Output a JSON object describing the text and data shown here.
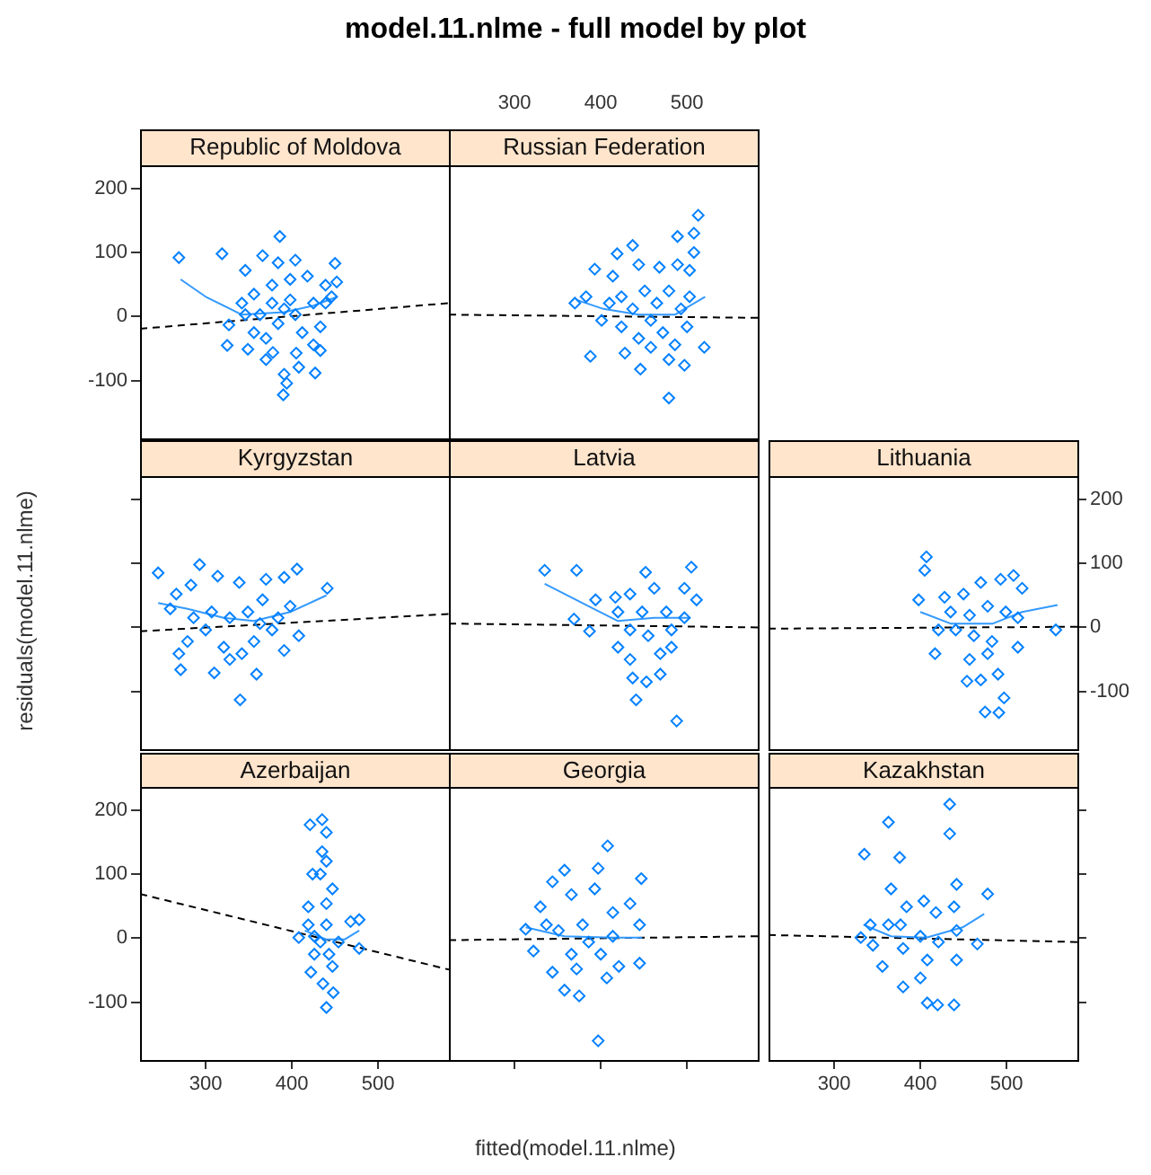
{
  "chart_data": [
    {
      "type": "scatter",
      "title": "Republic of Moldova",
      "annotations": [
        "model.11.nlme - full model by plot"
      ],
      "xlim": [
        224,
        582
      ],
      "ylim": [
        -190,
        236
      ],
      "xticks": [
        300,
        400,
        500
      ],
      "yticks": [
        -100,
        0,
        100,
        200
      ],
      "tick_labels": "y",
      "series": [
        {
          "type": "scatter",
          "color": "#0080ff",
          "marker": "diamond",
          "x": [
            269,
            319,
            386,
            366,
            346,
            384,
            404,
            450,
            452,
            327,
            325,
            349,
            378,
            391,
            390,
            394,
            427,
            408,
            433,
            342,
            356,
            377,
            398,
            418,
            439,
            425,
            404,
            384,
            363,
            377,
            398,
            356,
            370,
            412,
            433,
            391,
            346,
            439,
            446,
            370,
            405,
            425
          ],
          "values": [
            92,
            98,
            125,
            95,
            72,
            84,
            88,
            83,
            54,
            -13,
            -45,
            -51,
            -56,
            -90,
            -122,
            -104,
            -88,
            -79,
            -53,
            21,
            35,
            49,
            58,
            63,
            49,
            21,
            3,
            -11,
            3,
            21,
            26,
            -25,
            -34,
            -25,
            -16,
            12,
            3,
            21,
            31,
            -67,
            -57,
            -44
          ]
        },
        {
          "type": "line",
          "color": "#3399ff",
          "x": [
            271,
            300,
            342,
            391,
            425,
            453
          ],
          "values": [
            58,
            31,
            3,
            7,
            17,
            31
          ]
        },
        {
          "type": "line",
          "color": "#000000",
          "line_style": "dashed",
          "x": [
            224,
            582
          ],
          "values": [
            -19,
            21
          ]
        }
      ]
    },
    {
      "type": "scatter",
      "title": "Russian Federation",
      "xlim": [
        224,
        582
      ],
      "ylim": [
        -190,
        236
      ],
      "xticks": [
        300,
        400,
        500
      ],
      "yticks": [
        -100,
        0,
        100,
        200
      ],
      "tick_labels": "x",
      "series": [
        {
          "type": "scatter",
          "color": "#0080ff",
          "marker": "diamond",
          "x": [
            513,
            489,
            508,
            508,
            437,
            419,
            393,
            414,
            444,
            468,
            489,
            503,
            370,
            383,
            401,
            388,
            428,
            446,
            479,
            520,
            497,
            479,
            458,
            465,
            437,
            424,
            451,
            479,
            493,
            472,
            444,
            424,
            500,
            503,
            410,
            486,
            458
          ],
          "values": [
            158,
            125,
            130,
            100,
            111,
            98,
            74,
            63,
            81,
            77,
            81,
            72,
            21,
            31,
            -6,
            -62,
            -57,
            -82,
            -127,
            -48,
            -76,
            -67,
            -6,
            21,
            12,
            31,
            40,
            40,
            12,
            -25,
            -34,
            -16,
            -16,
            31,
            21,
            -44,
            -48
          ]
        },
        {
          "type": "line",
          "color": "#3399ff",
          "x": [
            372,
            403,
            444,
            486,
            521
          ],
          "values": [
            26,
            12,
            3,
            3,
            31
          ]
        },
        {
          "type": "line",
          "color": "#000000",
          "line_style": "dashed",
          "x": [
            224,
            582
          ],
          "values": [
            3,
            -2
          ]
        }
      ]
    },
    {
      "type": "scatter",
      "title": "Kyrgyzstan",
      "ylabel": "residuals(model.11.nlme)",
      "xlim": [
        224,
        582
      ],
      "ylim": [
        -190,
        236
      ],
      "xticks": [
        300,
        400,
        500
      ],
      "yticks": [
        -100,
        0,
        100,
        200
      ],
      "tick_labels": false,
      "series": [
        {
          "type": "scatter",
          "color": "#0080ff",
          "marker": "diamond",
          "x": [
            245,
            293,
            406,
            441,
            266,
            283,
            314,
            339,
            370,
            391,
            269,
            271,
            310,
            340,
            359,
            391,
            408,
            328,
            321,
            286,
            307,
            328,
            349,
            363,
            300,
            279,
            377,
            398,
            356,
            342,
            259,
            384,
            366
          ],
          "values": [
            85,
            98,
            91,
            61,
            52,
            66,
            80,
            70,
            75,
            78,
            -41,
            -66,
            -71,
            -113,
            -73,
            -36,
            -13,
            -50,
            -31,
            15,
            24,
            15,
            24,
            6,
            -4,
            -22,
            -4,
            33,
            -22,
            -41,
            29,
            15,
            43
          ]
        },
        {
          "type": "line",
          "color": "#3399ff",
          "x": [
            245,
            279,
            321,
            356,
            398,
            440
          ],
          "values": [
            38,
            29,
            15,
            10,
            24,
            50
          ]
        },
        {
          "type": "line",
          "color": "#000000",
          "line_style": "dashed",
          "x": [
            224,
            582
          ],
          "values": [
            -6,
            21
          ]
        }
      ]
    },
    {
      "type": "scatter",
      "title": "Latvia",
      "xlim": [
        224,
        582
      ],
      "ylim": [
        -190,
        236
      ],
      "xticks": [
        300,
        400,
        500
      ],
      "yticks": [
        -100,
        0,
        100,
        200
      ],
      "tick_labels": false,
      "series": [
        {
          "type": "scatter",
          "color": "#0080ff",
          "marker": "diamond",
          "x": [
            335,
            372,
            452,
            505,
            394,
            369,
            387,
            441,
            488,
            453,
            469,
            437,
            420,
            482,
            511,
            497,
            462,
            434,
            420,
            448,
            476,
            497,
            434,
            455,
            482,
            469,
            434,
            417
          ],
          "values": [
            89,
            89,
            86,
            94,
            43,
            13,
            -6,
            -113,
            -146,
            -85,
            -73,
            -79,
            -31,
            -31,
            43,
            61,
            61,
            52,
            24,
            24,
            24,
            15,
            -4,
            -13,
            -4,
            -41,
            -50,
            47
          ]
        },
        {
          "type": "line",
          "color": "#3399ff",
          "x": [
            335,
            386,
            420,
            462,
            504
          ],
          "values": [
            68,
            33,
            10,
            15,
            15
          ]
        },
        {
          "type": "line",
          "color": "#000000",
          "line_style": "dashed",
          "x": [
            224,
            582
          ],
          "values": [
            6,
            0
          ]
        }
      ]
    },
    {
      "type": "scatter",
      "title": "Lithuania",
      "xlim": [
        224,
        582
      ],
      "ylim": [
        -190,
        236
      ],
      "xticks": [
        300,
        400,
        500
      ],
      "yticks": [
        -100,
        0,
        100,
        200
      ],
      "tick_labels": "y",
      "series": [
        {
          "type": "scatter",
          "color": "#0080ff",
          "marker": "diamond",
          "x": [
            407,
            405,
            398,
            417,
            454,
            475,
            491,
            497,
            490,
            470,
            557,
            518,
            508,
            493,
            470,
            450,
            428,
            435,
            457,
            478,
            499,
            513,
            441,
            462,
            483,
            457,
            478,
            513,
            421
          ],
          "values": [
            110,
            89,
            43,
            -41,
            -84,
            -132,
            -133,
            -110,
            -73,
            -82,
            -4,
            61,
            81,
            75,
            70,
            52,
            47,
            24,
            19,
            33,
            24,
            15,
            -4,
            -13,
            -22,
            -50,
            -41,
            -31,
            -4
          ]
        },
        {
          "type": "line",
          "color": "#3399ff",
          "x": [
            400,
            435,
            484,
            518,
            559
          ],
          "values": [
            24,
            6,
            6,
            24,
            35
          ]
        },
        {
          "type": "line",
          "color": "#000000",
          "line_style": "dashed",
          "x": [
            224,
            582
          ],
          "values": [
            -2,
            1
          ]
        }
      ]
    },
    {
      "type": "scatter",
      "title": "Azerbaijan",
      "xlim": [
        224,
        582
      ],
      "ylim": [
        -190,
        236
      ],
      "xticks": [
        300,
        400,
        500
      ],
      "yticks": [
        -100,
        0,
        100,
        200
      ],
      "series": [
        {
          "type": "scatter",
          "color": "#0080ff",
          "marker": "diamond",
          "x": [
            421,
            435,
            440,
            435,
            440,
            424,
            433,
            447,
            419,
            440,
            408,
            419,
            440,
            454,
            478,
            468,
            478,
            426,
            447,
            436,
            440,
            448,
            422,
            433,
            426,
            443
          ],
          "values": [
            177,
            185,
            165,
            135,
            120,
            100,
            100,
            77,
            49,
            54,
            1,
            21,
            21,
            -6,
            -16,
            26,
            29,
            -25,
            -44,
            -71,
            -108,
            -85,
            -53,
            -6,
            3,
            -25
          ]
        },
        {
          "type": "line",
          "color": "#3399ff",
          "x": [
            415,
            440,
            461,
            478
          ],
          "values": [
            12,
            -2,
            -2,
            12
          ]
        },
        {
          "type": "line",
          "color": "#000000",
          "line_style": "dashed",
          "x": [
            224,
            582
          ],
          "values": [
            69,
            -49
          ]
        }
      ]
    },
    {
      "type": "scatter",
      "title": "Georgia",
      "xlabel": "fitted(model.11.nlme)",
      "xlim": [
        224,
        582
      ],
      "ylim": [
        -190,
        236
      ],
      "xticks": [
        300,
        400,
        500
      ],
      "yticks": [
        -100,
        0,
        100,
        200
      ],
      "tick_labels": false,
      "series": [
        {
          "type": "scatter",
          "color": "#0080ff",
          "marker": "diamond",
          "x": [
            397,
            408,
            447,
            397,
            358,
            344,
            313,
            322,
            344,
            358,
            375,
            407,
            445,
            445,
            434,
            421,
            330,
            366,
            393,
            414,
            379,
            351,
            386,
            366,
            400,
            337,
            414,
            372
          ],
          "values": [
            -160,
            144,
            93,
            109,
            106,
            88,
            14,
            -20,
            -53,
            -81,
            -90,
            -62,
            -39,
            21,
            54,
            -44,
            49,
            68,
            77,
            40,
            21,
            12,
            -6,
            -25,
            -25,
            21,
            3,
            -48
          ]
        },
        {
          "type": "line",
          "color": "#3399ff",
          "x": [
            313,
            358,
            414,
            448
          ],
          "values": [
            17,
            3,
            1,
            1
          ]
        },
        {
          "type": "line",
          "color": "#000000",
          "line_style": "dashed",
          "x": [
            224,
            582
          ],
          "values": [
            -3,
            3
          ]
        }
      ]
    },
    {
      "type": "scatter",
      "title": "Kazakhstan",
      "xlim": [
        224,
        582
      ],
      "ylim": [
        -190,
        236
      ],
      "xticks": [
        300,
        400,
        500
      ],
      "yticks": [
        -100,
        0,
        100,
        200
      ],
      "tick_labels": "x",
      "series": [
        {
          "type": "scatter",
          "color": "#0080ff",
          "marker": "diamond",
          "x": [
            434,
            434,
            363,
            335,
            376,
            478,
            442,
            366,
            331,
            345,
            356,
            380,
            408,
            439,
            420,
            466,
            442,
            400,
            363,
            384,
            404,
            418,
            439,
            400,
            421,
            380,
            408,
            377,
            342,
            442
          ],
          "values": [
            209,
            163,
            181,
            131,
            126,
            69,
            84,
            77,
            1,
            -11,
            -44,
            -76,
            -101,
            -104,
            -104,
            -9,
            -34,
            -62,
            21,
            49,
            58,
            40,
            49,
            3,
            -6,
            -16,
            -34,
            21,
            21,
            12
          ]
        },
        {
          "type": "line",
          "color": "#3399ff",
          "x": [
            334,
            366,
            407,
            449,
            474
          ],
          "values": [
            21,
            3,
            1,
            17,
            38
          ]
        },
        {
          "type": "line",
          "color": "#000000",
          "line_style": "dashed",
          "x": [
            224,
            582
          ],
          "values": [
            5,
            -6
          ]
        }
      ]
    }
  ]
}
